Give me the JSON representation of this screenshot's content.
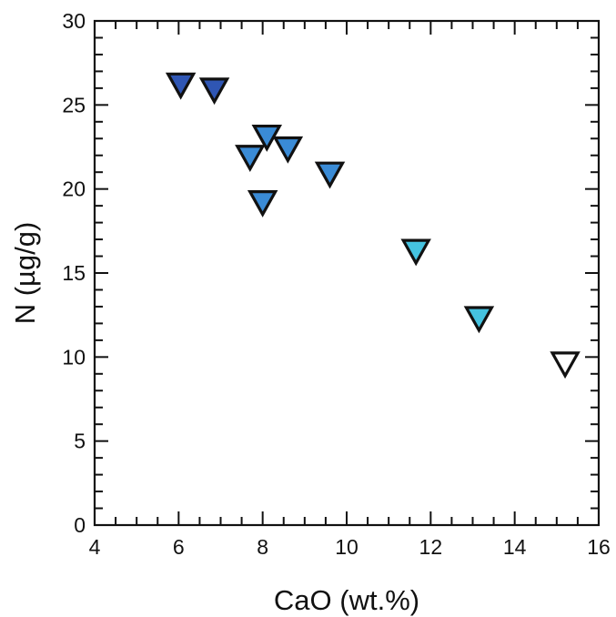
{
  "chart_data": {
    "type": "scatter",
    "title": "",
    "xlabel": "CaO (wt.%)",
    "ylabel": "N (µg/g)",
    "xlim": [
      4,
      16
    ],
    "ylim": [
      0,
      30
    ],
    "x_major_ticks": [
      4,
      6,
      8,
      10,
      12,
      14,
      16
    ],
    "x_minor_step": 0.5,
    "y_major_ticks": [
      0,
      5,
      10,
      15,
      20,
      25,
      30
    ],
    "y_minor_step": 1,
    "x_tick_labels": [
      "4",
      "6",
      "8",
      "10",
      "12",
      "14",
      "16"
    ],
    "y_tick_labels": [
      "0",
      "5",
      "10",
      "15",
      "20",
      "25",
      "30"
    ],
    "grid": false,
    "legend": "none",
    "marker": "down-triangle",
    "points": [
      {
        "x": 6.05,
        "y": 26.3,
        "color": "#2f56b4"
      },
      {
        "x": 6.85,
        "y": 26.0,
        "color": "#2f56b4"
      },
      {
        "x": 7.7,
        "y": 22.0,
        "color": "#3a8bd6"
      },
      {
        "x": 8.1,
        "y": 23.2,
        "color": "#3a8bd6"
      },
      {
        "x": 8.6,
        "y": 22.5,
        "color": "#3a8bd6"
      },
      {
        "x": 8.0,
        "y": 19.3,
        "color": "#3a8bd6"
      },
      {
        "x": 9.6,
        "y": 21.0,
        "color": "#3a8bd6"
      },
      {
        "x": 11.65,
        "y": 16.4,
        "color": "#45c3e0"
      },
      {
        "x": 13.15,
        "y": 12.4,
        "color": "#45c3e0"
      },
      {
        "x": 15.2,
        "y": 9.7,
        "color": "#ffffff"
      }
    ]
  }
}
